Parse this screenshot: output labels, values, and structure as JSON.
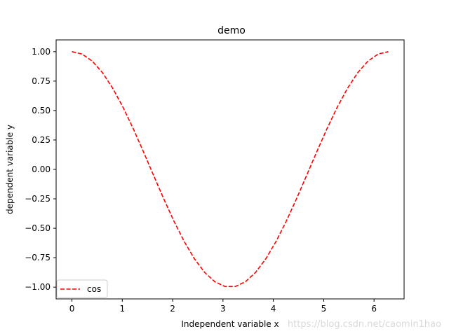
{
  "chart_data": {
    "type": "line",
    "title": "demo",
    "xlabel": "Independent variable x",
    "ylabel": "dependent variable y",
    "xlim": [
      -0.314,
      6.597
    ],
    "ylim": [
      -1.1,
      1.1
    ],
    "xticks": [
      0,
      1,
      2,
      3,
      4,
      5,
      6
    ],
    "yticks": [
      1.0,
      0.75,
      0.5,
      0.25,
      0.0,
      -0.25,
      -0.5,
      -0.75,
      -1.0
    ],
    "ytick_labels": [
      "1.00",
      "0.75",
      "0.50",
      "0.25",
      "0.00",
      "−0.25",
      "−0.50",
      "−0.75",
      "−1.00"
    ],
    "grid": false,
    "legend_position": "lower-left",
    "series": [
      {
        "name": "cos",
        "color": "#ff0000",
        "style": "dashed",
        "x": [
          0.0,
          0.2027,
          0.4054,
          0.6081,
          0.8107,
          1.0134,
          1.2161,
          1.4188,
          1.6215,
          1.8242,
          2.0268,
          2.2295,
          2.4322,
          2.6349,
          2.8376,
          3.0403,
          3.2429,
          3.4456,
          3.6483,
          3.851,
          4.0537,
          4.2564,
          4.459,
          4.6617,
          4.8644,
          5.0671,
          5.2698,
          5.4725,
          5.6751,
          5.8778,
          6.0805,
          6.2832
        ],
        "y": [
          1.0,
          0.9795,
          0.919,
          0.8208,
          0.6889,
          0.5289,
          0.3473,
          0.1514,
          -0.0506,
          -0.2507,
          -0.4404,
          -0.6121,
          -0.7588,
          -0.8743,
          -0.954,
          -0.9949,
          -0.9949,
          -0.954,
          -0.8743,
          -0.7588,
          -0.6121,
          -0.4404,
          -0.2507,
          -0.0506,
          0.1514,
          0.3473,
          0.5289,
          0.6889,
          0.8208,
          0.919,
          0.9795,
          1.0
        ]
      }
    ]
  },
  "watermark": "https://blog.csdn.net/caomin1hao"
}
